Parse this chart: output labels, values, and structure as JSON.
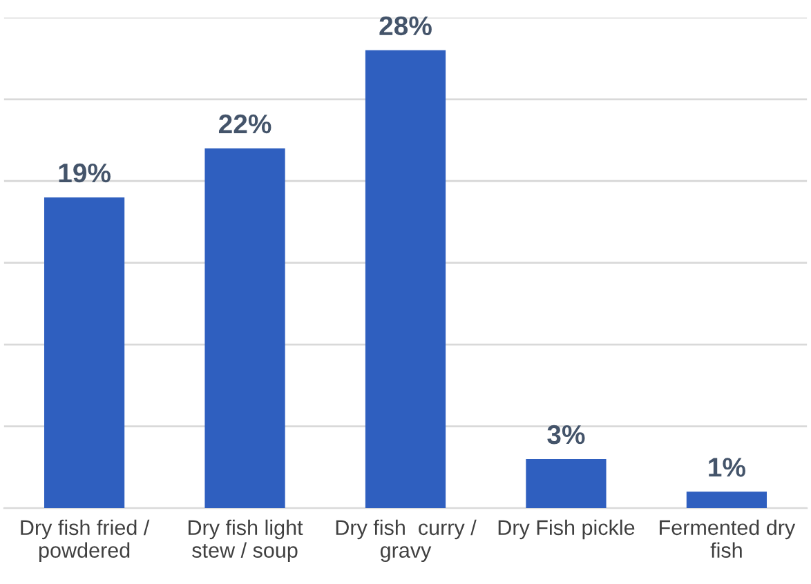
{
  "chart_data": {
    "type": "bar",
    "categories": [
      "Dry fish fried /\npowdered",
      "Dry fish light\nstew / soup",
      "Dry fish  curry /\ngravy",
      "Dry Fish pickle",
      "Fermented dry\nfish"
    ],
    "values": [
      19,
      22,
      28,
      3,
      1
    ],
    "value_labels": [
      "19%",
      "22%",
      "28%",
      "3%",
      "1%"
    ],
    "color": "#2f5fbf",
    "ylim": [
      0,
      30
    ],
    "yticks": [
      {
        "value": 0,
        "label": null
      },
      {
        "value": 5,
        "label": null
      },
      {
        "value": 10,
        "label": null
      },
      {
        "value": 15,
        "label": null
      },
      {
        "value": 20,
        "label": null
      },
      {
        "value": 25,
        "label": null
      },
      {
        "value": 30,
        "label": null
      }
    ],
    "grid": "y",
    "tick_labels": "x"
  }
}
